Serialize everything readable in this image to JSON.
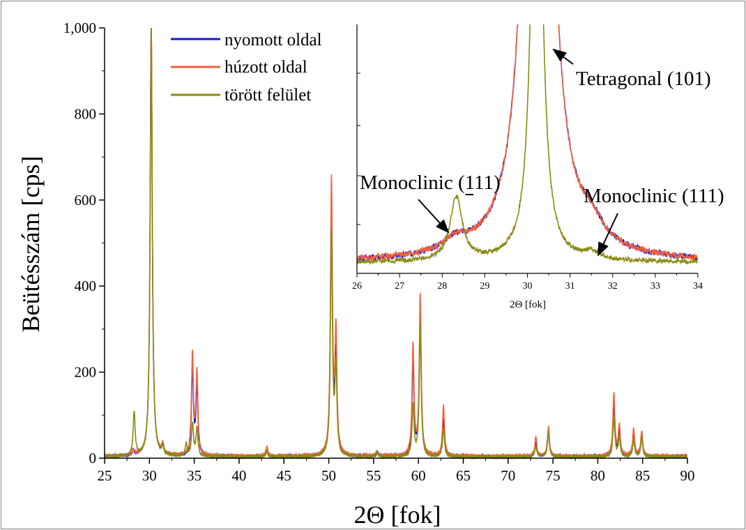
{
  "colors": {
    "nyomott": "#1515d6",
    "huzott": "#f2613d",
    "torott": "#8a8a12"
  },
  "chart_data": [
    {
      "type": "line",
      "xlabel": "2Θ [fok]",
      "ylabel": "Beütésszám [cps]",
      "xlim": [
        25,
        90
      ],
      "ylim": [
        0,
        1000
      ],
      "xticks": [
        "25",
        "30",
        "35",
        "40",
        "45",
        "50",
        "55",
        "60",
        "65",
        "70",
        "75",
        "80",
        "85",
        "90"
      ],
      "yticks": [
        "0",
        "200",
        "400",
        "600",
        "800",
        "1,000"
      ],
      "grid": false,
      "legend_position": "top-left inside plot",
      "series": [
        {
          "name": "nyomott oldal",
          "color": "#1515d6",
          "peaks": [
            [
              28.2,
              12
            ],
            [
              30.2,
              1000
            ],
            [
              31.5,
              20
            ],
            [
              34.8,
              205
            ],
            [
              35.3,
              160
            ],
            [
              43.1,
              15
            ],
            [
              50.3,
              600
            ],
            [
              50.8,
              220
            ],
            [
              55.4,
              8
            ],
            [
              59.4,
              220
            ],
            [
              60.2,
              340
            ],
            [
              62.8,
              85
            ],
            [
              73.1,
              32
            ],
            [
              74.5,
              60
            ],
            [
              81.8,
              120
            ],
            [
              82.4,
              55
            ],
            [
              84.0,
              45
            ],
            [
              84.9,
              45
            ]
          ],
          "baseline": 4
        },
        {
          "name": "húzott oldal",
          "color": "#f2613d",
          "peaks": [
            [
              28.2,
              12
            ],
            [
              30.2,
              1000
            ],
            [
              31.5,
              22
            ],
            [
              34.8,
              235
            ],
            [
              35.3,
              188
            ],
            [
              43.1,
              20
            ],
            [
              50.3,
              635
            ],
            [
              50.8,
              280
            ],
            [
              55.4,
              10
            ],
            [
              59.4,
              255
            ],
            [
              60.2,
              370
            ],
            [
              62.8,
              115
            ],
            [
              73.1,
              45
            ],
            [
              74.5,
              68
            ],
            [
              81.8,
              145
            ],
            [
              82.4,
              70
            ],
            [
              84.0,
              62
            ],
            [
              84.9,
              58
            ]
          ],
          "baseline": 5
        },
        {
          "name": "törött felület",
          "color": "#8a8a12",
          "peaks": [
            [
              28.3,
              102
            ],
            [
              30.2,
              1000
            ],
            [
              31.5,
              18
            ],
            [
              34.1,
              28
            ],
            [
              34.8,
              75
            ],
            [
              35.3,
              65
            ],
            [
              43.1,
              12
            ],
            [
              50.3,
              520
            ],
            [
              50.8,
              200
            ],
            [
              55.4,
              12
            ],
            [
              59.4,
              120
            ],
            [
              60.2,
              300
            ],
            [
              62.8,
              65
            ],
            [
              73.1,
              25
            ],
            [
              74.5,
              55
            ],
            [
              81.8,
              90
            ],
            [
              82.4,
              45
            ],
            [
              84.0,
              40
            ],
            [
              84.9,
              45
            ]
          ],
          "baseline": 3
        }
      ]
    },
    {
      "type": "line",
      "title": "inset",
      "xlabel": "2Θ [fok]",
      "ylabel": "",
      "xlim": [
        26,
        34
      ],
      "xticks": [
        "26",
        "27",
        "28",
        "29",
        "30",
        "31",
        "32",
        "33",
        "34"
      ],
      "grid": false,
      "annotations": [
        {
          "text": "Tetragonal (101)",
          "x": 30.5
        },
        {
          "text": "Monoclinic (111)",
          "x": 28.3,
          "overline_digit": "1"
        },
        {
          "text": "Monoclinic (111)",
          "x": 31.6
        }
      ]
    }
  ]
}
